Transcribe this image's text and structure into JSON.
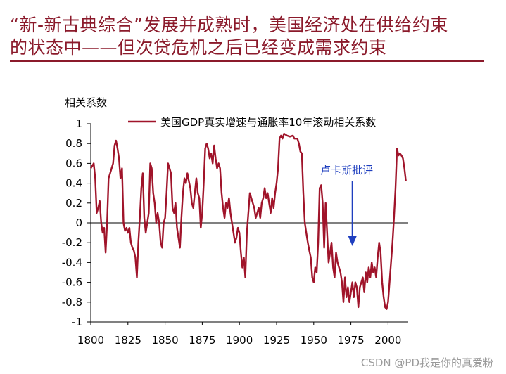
{
  "title_line1": "“新-新古典综合”发展并成熟时，美国经济处在供给约束",
  "title_line2": "的状态中——但次贷危机之后已经变成需求约束",
  "watermark": "CSDN @PD我是你的真爱粉",
  "colors": {
    "accent": "#8b1a2b",
    "series": "#a0142a",
    "annotation": "#1f3fbf",
    "axis": "#000000"
  },
  "chart_data": {
    "type": "line",
    "title": "",
    "ylabel": "相关系数",
    "xlabel": "",
    "xlim": [
      1800,
      2015
    ],
    "ylim": [
      -1,
      1
    ],
    "x_ticks": [
      1800,
      1825,
      1850,
      1875,
      1900,
      1925,
      1950,
      1975,
      2000
    ],
    "y_ticks": [
      1,
      0.8,
      0.6,
      0.4,
      0.2,
      0,
      -0.2,
      -0.4,
      -0.6,
      -0.8,
      -1
    ],
    "y_tick_labels": [
      "1",
      "0.8",
      "0.6",
      "0.4",
      "0.2",
      "0",
      "-0.2",
      "-0.4",
      "-0.6",
      "-0.8",
      "-1"
    ],
    "legend": {
      "position": "top",
      "label": "美国GDP真实增速与通胀率10年滚动相关系数"
    },
    "annotation": {
      "text": "卢卡斯批评",
      "x": 1976,
      "y_arrow_tail": 0.42,
      "y_arrow_head": -0.22
    },
    "series": [
      {
        "name": "美国GDP真实增速与通胀率10年滚动相关系数",
        "points": [
          [
            1800,
            0.55
          ],
          [
            1802,
            0.6
          ],
          [
            1803,
            0.45
          ],
          [
            1804,
            0.1
          ],
          [
            1805,
            0.15
          ],
          [
            1806,
            0.22
          ],
          [
            1807,
            0.0
          ],
          [
            1808,
            -0.1
          ],
          [
            1809,
            -0.05
          ],
          [
            1810,
            -0.3
          ],
          [
            1811,
            0.0
          ],
          [
            1812,
            0.45
          ],
          [
            1813,
            0.5
          ],
          [
            1815,
            0.6
          ],
          [
            1816,
            0.78
          ],
          [
            1817,
            0.83
          ],
          [
            1818,
            0.75
          ],
          [
            1819,
            0.65
          ],
          [
            1820,
            0.45
          ],
          [
            1821,
            0.55
          ],
          [
            1822,
            0.0
          ],
          [
            1823,
            -0.08
          ],
          [
            1824,
            -0.05
          ],
          [
            1825,
            -0.1
          ],
          [
            1826,
            -0.05
          ],
          [
            1827,
            -0.2
          ],
          [
            1828,
            -0.25
          ],
          [
            1829,
            -0.28
          ],
          [
            1830,
            -0.35
          ],
          [
            1831,
            -0.55
          ],
          [
            1832,
            -0.2
          ],
          [
            1833,
            0.05
          ],
          [
            1834,
            0.35
          ],
          [
            1835,
            0.5
          ],
          [
            1836,
            0.05
          ],
          [
            1837,
            -0.1
          ],
          [
            1838,
            0.0
          ],
          [
            1839,
            0.1
          ],
          [
            1840,
            0.6
          ],
          [
            1841,
            0.55
          ],
          [
            1842,
            0.3
          ],
          [
            1843,
            0.2
          ],
          [
            1844,
            0.0
          ],
          [
            1845,
            0.1
          ],
          [
            1846,
            0.0
          ],
          [
            1847,
            -0.2
          ],
          [
            1848,
            -0.25
          ],
          [
            1849,
            0.0
          ],
          [
            1850,
            0.05
          ],
          [
            1851,
            0.3
          ],
          [
            1852,
            0.6
          ],
          [
            1853,
            0.55
          ],
          [
            1854,
            0.5
          ],
          [
            1855,
            0.15
          ],
          [
            1856,
            0.1
          ],
          [
            1857,
            0.2
          ],
          [
            1858,
            -0.05
          ],
          [
            1859,
            -0.15
          ],
          [
            1860,
            -0.25
          ],
          [
            1861,
            0.05
          ],
          [
            1862,
            0.3
          ],
          [
            1863,
            0.45
          ],
          [
            1864,
            0.4
          ],
          [
            1865,
            0.5
          ],
          [
            1866,
            0.42
          ],
          [
            1867,
            0.35
          ],
          [
            1868,
            0.2
          ],
          [
            1869,
            0.15
          ],
          [
            1870,
            0.3
          ],
          [
            1871,
            0.45
          ],
          [
            1872,
            0.3
          ],
          [
            1873,
            0.25
          ],
          [
            1874,
            -0.05
          ],
          [
            1875,
            0.1
          ],
          [
            1876,
            0.4
          ],
          [
            1877,
            0.75
          ],
          [
            1878,
            0.8
          ],
          [
            1879,
            0.75
          ],
          [
            1880,
            0.65
          ],
          [
            1881,
            0.7
          ],
          [
            1882,
            0.6
          ],
          [
            1883,
            0.78
          ],
          [
            1884,
            0.65
          ],
          [
            1885,
            0.55
          ],
          [
            1886,
            0.6
          ],
          [
            1887,
            0.55
          ],
          [
            1888,
            0.3
          ],
          [
            1889,
            0.15
          ],
          [
            1890,
            0.05
          ],
          [
            1891,
            0.2
          ],
          [
            1892,
            0.15
          ],
          [
            1893,
            0.25
          ],
          [
            1894,
            0.1
          ],
          [
            1895,
            0.0
          ],
          [
            1896,
            -0.1
          ],
          [
            1897,
            -0.2
          ],
          [
            1898,
            -0.15
          ],
          [
            1899,
            -0.05
          ],
          [
            1900,
            -0.1
          ],
          [
            1901,
            -0.3
          ],
          [
            1902,
            -0.45
          ],
          [
            1903,
            -0.35
          ],
          [
            1904,
            -0.55
          ],
          [
            1905,
            -0.1
          ],
          [
            1906,
            0.1
          ],
          [
            1907,
            0.3
          ],
          [
            1908,
            0.25
          ],
          [
            1909,
            0.2
          ],
          [
            1910,
            0.15
          ],
          [
            1911,
            0.05
          ],
          [
            1912,
            0.1
          ],
          [
            1913,
            0.15
          ],
          [
            1914,
            0.05
          ],
          [
            1915,
            0.2
          ],
          [
            1916,
            0.25
          ],
          [
            1917,
            0.35
          ],
          [
            1918,
            0.25
          ],
          [
            1919,
            0.3
          ],
          [
            1920,
            0.2
          ],
          [
            1921,
            0.1
          ],
          [
            1922,
            0.25
          ],
          [
            1923,
            0.15
          ],
          [
            1924,
            0.3
          ],
          [
            1925,
            0.4
          ],
          [
            1926,
            0.55
          ],
          [
            1927,
            0.85
          ],
          [
            1928,
            0.88
          ],
          [
            1929,
            0.85
          ],
          [
            1930,
            0.9
          ],
          [
            1932,
            0.88
          ],
          [
            1934,
            0.87
          ],
          [
            1936,
            0.88
          ],
          [
            1937,
            0.85
          ],
          [
            1938,
            0.85
          ],
          [
            1939,
            0.85
          ],
          [
            1940,
            0.8
          ],
          [
            1941,
            0.72
          ],
          [
            1942,
            0.7
          ],
          [
            1943,
            0.3
          ],
          [
            1944,
            0.0
          ],
          [
            1945,
            -0.1
          ],
          [
            1946,
            -0.2
          ],
          [
            1947,
            -0.28
          ],
          [
            1948,
            -0.35
          ],
          [
            1949,
            -0.55
          ],
          [
            1950,
            -0.6
          ],
          [
            1951,
            -0.45
          ],
          [
            1952,
            -0.5
          ],
          [
            1953,
            -0.2
          ],
          [
            1954,
            0.35
          ],
          [
            1955,
            0.38
          ],
          [
            1956,
            0.2
          ],
          [
            1957,
            -0.25
          ],
          [
            1958,
            0.2
          ],
          [
            1959,
            -0.1
          ],
          [
            1960,
            -0.4
          ],
          [
            1961,
            -0.3
          ],
          [
            1962,
            -0.2
          ],
          [
            1963,
            -0.45
          ],
          [
            1964,
            -0.55
          ],
          [
            1965,
            -0.3
          ],
          [
            1966,
            -0.4
          ],
          [
            1967,
            -0.45
          ],
          [
            1968,
            -0.5
          ],
          [
            1969,
            -0.6
          ],
          [
            1970,
            -0.8
          ],
          [
            1971,
            -0.55
          ],
          [
            1972,
            -0.75
          ],
          [
            1973,
            -0.65
          ],
          [
            1974,
            -0.8
          ],
          [
            1975,
            -0.7
          ],
          [
            1976,
            -0.6
          ],
          [
            1977,
            -0.75
          ],
          [
            1978,
            -0.6
          ],
          [
            1979,
            -0.65
          ],
          [
            1980,
            -0.85
          ],
          [
            1981,
            -0.65
          ],
          [
            1982,
            -0.6
          ],
          [
            1983,
            -0.55
          ],
          [
            1984,
            -0.7
          ],
          [
            1985,
            -0.5
          ],
          [
            1986,
            -0.6
          ],
          [
            1987,
            -0.45
          ],
          [
            1988,
            -0.55
          ],
          [
            1989,
            -0.4
          ],
          [
            1990,
            -0.5
          ],
          [
            1991,
            -0.45
          ],
          [
            1992,
            -0.55
          ],
          [
            1993,
            -0.35
          ],
          [
            1994,
            -0.2
          ],
          [
            1995,
            -0.3
          ],
          [
            1996,
            -0.6
          ],
          [
            1997,
            -0.75
          ],
          [
            1998,
            -0.85
          ],
          [
            1999,
            -0.87
          ],
          [
            2000,
            -0.8
          ],
          [
            2001,
            -0.6
          ],
          [
            2002,
            -0.4
          ],
          [
            2003,
            -0.2
          ],
          [
            2004,
            0.05
          ],
          [
            2005,
            0.35
          ],
          [
            2006,
            0.75
          ],
          [
            2007,
            0.68
          ],
          [
            2008,
            0.7
          ],
          [
            2009,
            0.68
          ],
          [
            2010,
            0.65
          ],
          [
            2011,
            0.55
          ],
          [
            2012,
            0.42
          ]
        ]
      }
    ]
  }
}
